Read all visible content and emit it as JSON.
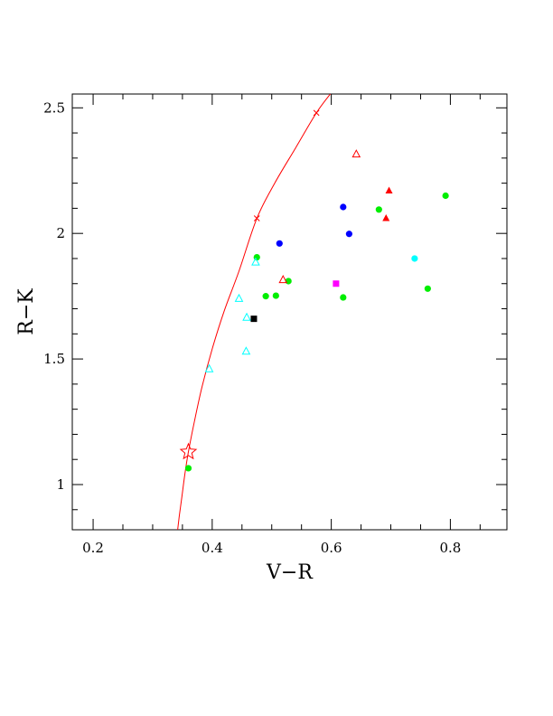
{
  "chart_data": {
    "type": "scatter",
    "xlabel": "V−R",
    "ylabel": "R−K",
    "xlim": [
      0.165,
      0.895
    ],
    "ylim": [
      0.82,
      2.555
    ],
    "xticks": [
      {
        "value": 0.2,
        "label": "0.2"
      },
      {
        "value": 0.4,
        "label": "0.4"
      },
      {
        "value": 0.6,
        "label": "0.6"
      },
      {
        "value": 0.8,
        "label": "0.8"
      }
    ],
    "xminor_step": 0.05,
    "yticks": [
      {
        "value": 1.0,
        "label": "1"
      },
      {
        "value": 1.5,
        "label": "1.5"
      },
      {
        "value": 2.0,
        "label": "2"
      },
      {
        "value": 2.5,
        "label": "2.5"
      }
    ],
    "yminor_step": 0.1,
    "grid": false,
    "colors": {
      "curve": "#ff0000",
      "red": "#ff0000",
      "green": "#00ee00",
      "blue": "#0000ff",
      "cyan": "#00ffff",
      "magenta": "#ff00ff",
      "black": "#000000"
    },
    "curve": {
      "color": "#ff0000",
      "points": [
        [
          0.342,
          0.82
        ],
        [
          0.345,
          0.88
        ],
        [
          0.349,
          0.95
        ],
        [
          0.354,
          1.04
        ],
        [
          0.36,
          1.13
        ],
        [
          0.37,
          1.25
        ],
        [
          0.383,
          1.39
        ],
        [
          0.4,
          1.54
        ],
        [
          0.42,
          1.69
        ],
        [
          0.445,
          1.85
        ],
        [
          0.475,
          2.06
        ],
        [
          0.505,
          2.2
        ],
        [
          0.54,
          2.34
        ],
        [
          0.575,
          2.48
        ],
        [
          0.6,
          2.56
        ]
      ],
      "tick_marks": [
        [
          0.475,
          2.06
        ],
        [
          0.575,
          2.48
        ]
      ]
    },
    "star": {
      "x": 0.36,
      "y": 1.13,
      "color": "#ff0000"
    },
    "series": [
      {
        "marker": "filled-circle",
        "color": "#00ee00",
        "points": [
          [
            0.36,
            1.065
          ],
          [
            0.475,
            1.905
          ],
          [
            0.49,
            1.75
          ],
          [
            0.507,
            1.752
          ],
          [
            0.528,
            1.81
          ],
          [
            0.62,
            1.745
          ],
          [
            0.68,
            2.095
          ],
          [
            0.762,
            1.78
          ],
          [
            0.792,
            2.15
          ]
        ]
      },
      {
        "marker": "filled-circle",
        "color": "#0000ff",
        "points": [
          [
            0.513,
            1.96
          ],
          [
            0.62,
            2.105
          ],
          [
            0.63,
            1.998
          ]
        ]
      },
      {
        "marker": "filled-circle",
        "color": "#00ffff",
        "points": [
          [
            0.74,
            1.9
          ]
        ]
      },
      {
        "marker": "open-triangle",
        "color": "#00ffff",
        "points": [
          [
            0.395,
            1.46
          ],
          [
            0.445,
            1.74
          ],
          [
            0.457,
            1.53
          ],
          [
            0.458,
            1.665
          ],
          [
            0.473,
            1.885
          ]
        ]
      },
      {
        "marker": "open-triangle",
        "color": "#ff0000",
        "points": [
          [
            0.519,
            1.815
          ],
          [
            0.642,
            2.315
          ]
        ]
      },
      {
        "marker": "filled-triangle",
        "color": "#ff0000",
        "points": [
          [
            0.692,
            2.06
          ],
          [
            0.697,
            2.17
          ]
        ]
      },
      {
        "marker": "filled-square",
        "color": "#ff00ff",
        "points": [
          [
            0.608,
            1.8
          ]
        ]
      },
      {
        "marker": "filled-square",
        "color": "#000000",
        "points": [
          [
            0.47,
            1.66
          ]
        ]
      }
    ]
  }
}
